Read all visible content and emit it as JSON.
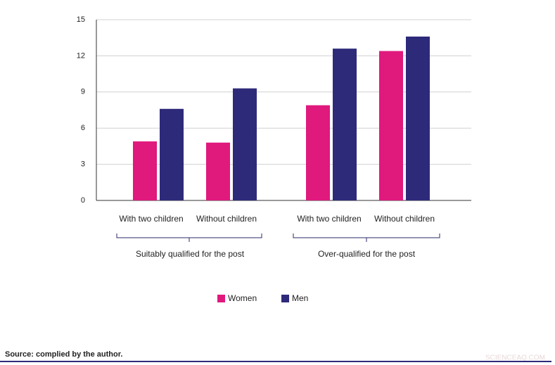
{
  "chart_data": {
    "type": "bar",
    "categories": [
      "With two children",
      "Without children",
      "With two children",
      "Without children"
    ],
    "groups": [
      "Suitably qualified for the post",
      "Over-qualified for the post"
    ],
    "series": [
      {
        "name": "Women",
        "color": "#e0197d",
        "values": [
          4.9,
          4.8,
          7.9,
          12.4
        ]
      },
      {
        "name": "Men",
        "color": "#2e2a7a",
        "values": [
          7.6,
          9.3,
          12.6,
          13.6
        ]
      }
    ],
    "ylim": [
      0,
      15
    ],
    "yticks": [
      0,
      3,
      6,
      9,
      12,
      15
    ],
    "grid": true
  },
  "source": "Source: complied by the author.",
  "watermark": "SCIENCEAQ.COM"
}
